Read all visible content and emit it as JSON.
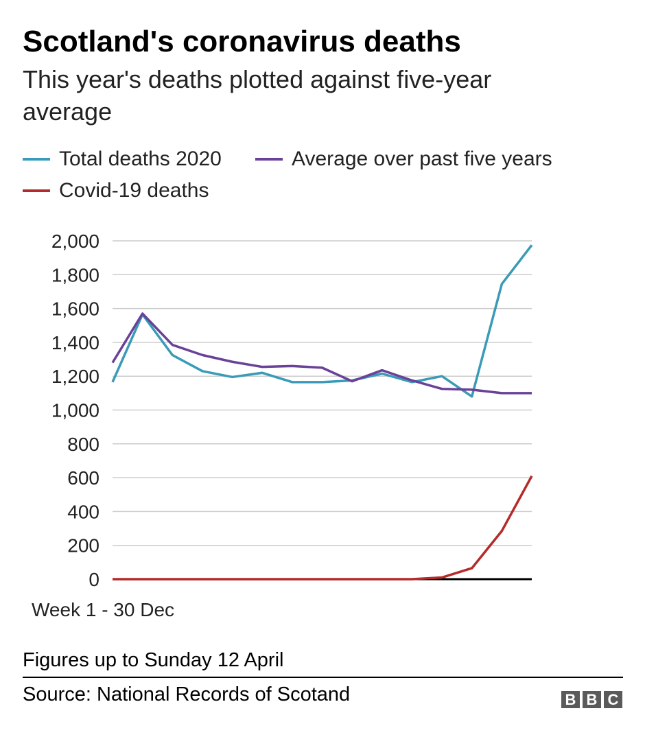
{
  "title": "Scotland's coronavirus deaths",
  "subtitle": "This year's deaths plotted against five-year average",
  "footnote": "Figures up to Sunday 12 April",
  "source": "Source: National Records of Scotand",
  "logo_letters": [
    "B",
    "B",
    "C"
  ],
  "chart_data": {
    "type": "line",
    "x": [
      1,
      2,
      3,
      4,
      5,
      6,
      7,
      8,
      9,
      10,
      11,
      12,
      13,
      14,
      15
    ],
    "x_label": "Week 1 - 30 Dec",
    "ylim": [
      0,
      2000
    ],
    "y_ticks": [
      0,
      200,
      400,
      600,
      800,
      1000,
      1200,
      1400,
      1600,
      1800,
      2000
    ],
    "y_tick_labels": [
      "0",
      "200",
      "400",
      "600",
      "800",
      "1,000",
      "1,200",
      "1,400",
      "1,600",
      "1,800",
      "2,000"
    ],
    "grid": true,
    "legend_position": "top",
    "series": [
      {
        "name": "Total deaths 2020",
        "color": "#3a9ab8",
        "values": [
          1165,
          1565,
          1325,
          1230,
          1195,
          1220,
          1165,
          1165,
          1175,
          1215,
          1165,
          1200,
          1080,
          1745,
          1975
        ]
      },
      {
        "name": "Average over past five years",
        "color": "#6a4198",
        "values": [
          1280,
          1570,
          1385,
          1325,
          1285,
          1255,
          1260,
          1250,
          1170,
          1235,
          1175,
          1125,
          1120,
          1100,
          1100
        ]
      },
      {
        "name": "Covid-19 deaths",
        "color": "#b52a2a",
        "values": [
          0,
          0,
          0,
          0,
          0,
          0,
          0,
          0,
          0,
          0,
          0,
          10,
          65,
          285,
          610
        ]
      }
    ]
  }
}
